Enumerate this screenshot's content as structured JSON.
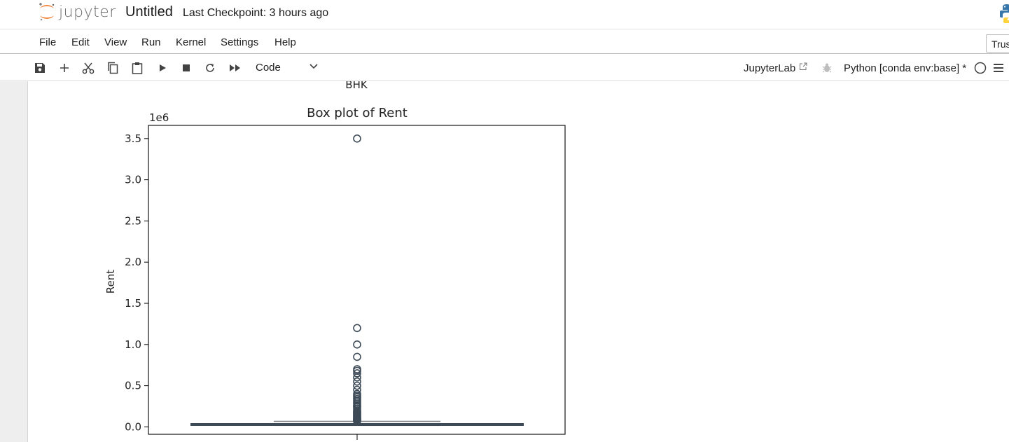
{
  "header": {
    "logo_text": "jupyter",
    "notebook_title": "Untitled",
    "checkpoint_text": "Last Checkpoint: 3 hours ago",
    "colors": {
      "jupyter_orange": "#f37726",
      "python_blue": "#3776ab",
      "python_yellow": "#ffd43b"
    }
  },
  "menu": {
    "items": [
      {
        "label": "File"
      },
      {
        "label": "Edit"
      },
      {
        "label": "View"
      },
      {
        "label": "Run"
      },
      {
        "label": "Kernel"
      },
      {
        "label": "Settings"
      },
      {
        "label": "Help"
      }
    ],
    "trusted_label": "Trus"
  },
  "toolbar": {
    "icons": [
      "save-icon",
      "add-cell-icon",
      "cut-icon",
      "copy-icon",
      "paste-icon",
      "run-icon",
      "stop-icon",
      "restart-icon",
      "run-all-icon"
    ],
    "cell_type": "Code",
    "jupyterlab_label": "JupyterLab",
    "kernel_name": "Python [conda env:base] *"
  },
  "output": {
    "previous_xlabel": "BHK"
  },
  "chart_data": {
    "type": "box",
    "title": "Box plot of Rent",
    "ylabel": "Rent",
    "xlabel": "",
    "y_scale_label": "1e6",
    "ylim": [
      -0.09,
      3.66
    ],
    "yticks": [
      0.0,
      0.5,
      1.0,
      1.5,
      2.0,
      2.5,
      3.0,
      3.5
    ],
    "ytick_labels": [
      "0.0",
      "0.5",
      "1.0",
      "1.5",
      "2.0",
      "2.5",
      "3.0",
      "3.5"
    ],
    "box": {
      "min": 0.0012,
      "q1": 0.01,
      "median": 0.016,
      "q3": 0.033,
      "max": 0.067
    },
    "outliers": [
      3.5,
      1.2,
      1.0,
      0.85,
      0.7,
      0.68,
      0.65,
      0.6,
      0.55,
      0.5,
      0.45,
      0.4,
      0.38,
      0.36,
      0.34,
      0.32,
      0.3,
      0.28,
      0.26,
      0.25,
      0.24,
      0.22,
      0.2,
      0.19,
      0.18,
      0.17,
      0.16,
      0.15,
      0.14,
      0.13,
      0.12,
      0.11,
      0.1,
      0.095,
      0.09,
      0.085,
      0.08,
      0.075,
      0.07
    ],
    "grid": false
  }
}
